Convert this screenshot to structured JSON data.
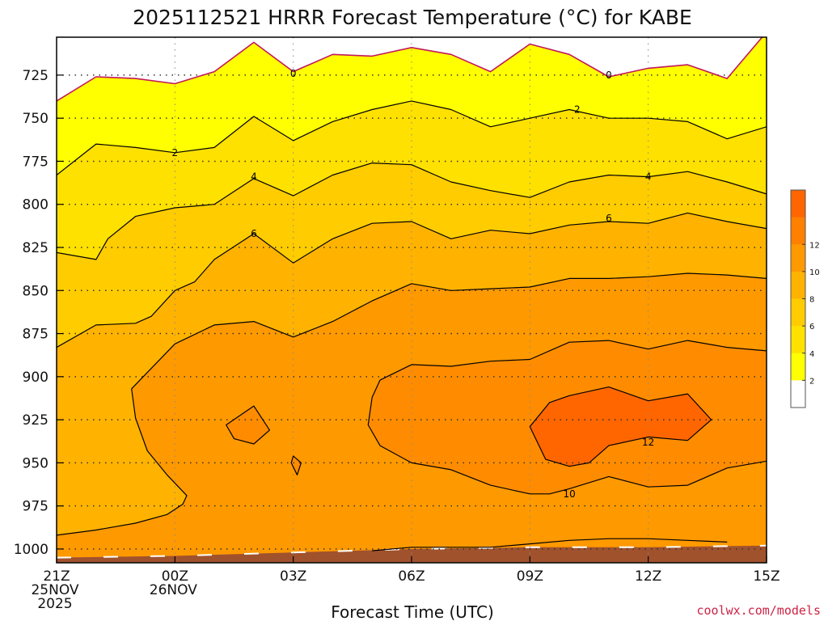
{
  "chart_data": {
    "type": "contour",
    "title": "2025112521 HRRR Forecast Temperature (°C) for KABE",
    "xlabel": "Forecast Time (UTC)",
    "ylabel": "",
    "x_ticks": [
      {
        "hour": 0,
        "lines": [
          "21Z",
          "25NOV",
          "2025"
        ]
      },
      {
        "hour": 3,
        "lines": [
          "00Z",
          "26NOV"
        ]
      },
      {
        "hour": 6,
        "lines": [
          "03Z"
        ]
      },
      {
        "hour": 9,
        "lines": [
          "06Z"
        ]
      },
      {
        "hour": 12,
        "lines": [
          "09Z"
        ]
      },
      {
        "hour": 15,
        "lines": [
          "12Z"
        ]
      },
      {
        "hour": 18,
        "lines": [
          "15Z"
        ]
      }
    ],
    "y_ticks": [
      725,
      750,
      775,
      800,
      825,
      850,
      875,
      900,
      925,
      950,
      975,
      1000
    ],
    "xlim": [
      0,
      18
    ],
    "ylim": [
      1008,
      703
    ],
    "credit": "coolwx.com/models",
    "colorbar": {
      "ticks": [
        "2",
        "4",
        "6",
        "8",
        "10",
        "12"
      ],
      "colors": [
        "#ffffff",
        "#ffff00",
        "#ffe100",
        "#ffcc00",
        "#ffb300",
        "#ff9900",
        "#ff8000",
        "#ff6600"
      ]
    },
    "fill_colors": {
      "0": "#ffffff",
      "2": "#ffff00",
      "4": "#ffe100",
      "6": "#ffcc00",
      "8": "#ffb300",
      "10": "#ff9900",
      "12": "#ff6600",
      "ground": "#a0522d"
    },
    "isotherms": [
      {
        "level": "0",
        "color": "#c2185b",
        "closed": false,
        "points": [
          [
            0,
            740
          ],
          [
            1,
            726
          ],
          [
            2,
            727
          ],
          [
            3,
            730
          ],
          [
            4,
            723
          ],
          [
            5,
            706
          ],
          [
            6,
            723
          ],
          [
            7,
            713
          ],
          [
            8,
            714
          ],
          [
            9,
            709
          ],
          [
            10,
            713
          ],
          [
            11,
            723
          ],
          [
            12,
            707
          ],
          [
            13,
            713
          ],
          [
            14,
            726
          ],
          [
            15,
            721
          ],
          [
            16,
            719
          ],
          [
            17,
            727
          ],
          [
            18,
            700
          ]
        ],
        "labels": [
          [
            6,
            724
          ],
          [
            14,
            725
          ]
        ]
      },
      {
        "level": "2",
        "color": "#000000",
        "closed": false,
        "points": [
          [
            0,
            783
          ],
          [
            1,
            765
          ],
          [
            2,
            767
          ],
          [
            3,
            770
          ],
          [
            4,
            767
          ],
          [
            5,
            749
          ],
          [
            6,
            763
          ],
          [
            7,
            752
          ],
          [
            8,
            745
          ],
          [
            9,
            740
          ],
          [
            10,
            745
          ],
          [
            11,
            755
          ],
          [
            12,
            750
          ],
          [
            13,
            745
          ],
          [
            14,
            750
          ],
          [
            15,
            750
          ],
          [
            16,
            752
          ],
          [
            17,
            762
          ],
          [
            18,
            755
          ]
        ],
        "labels": [
          [
            3,
            770
          ],
          [
            13.2,
            745
          ]
        ]
      },
      {
        "level": "4",
        "color": "#000000",
        "closed": false,
        "points": [
          [
            0,
            828
          ],
          [
            1,
            832
          ],
          [
            1.3,
            820
          ],
          [
            2,
            807
          ],
          [
            3,
            802
          ],
          [
            4,
            800
          ],
          [
            5,
            785
          ],
          [
            6,
            795
          ],
          [
            7,
            783
          ],
          [
            8,
            776
          ],
          [
            9,
            777
          ],
          [
            10,
            787
          ],
          [
            11,
            792
          ],
          [
            12,
            796
          ],
          [
            13,
            787
          ],
          [
            14,
            783
          ],
          [
            15,
            784
          ],
          [
            16,
            781
          ],
          [
            17,
            787
          ],
          [
            18,
            794
          ]
        ],
        "labels": [
          [
            5,
            784
          ],
          [
            15,
            784
          ]
        ]
      },
      {
        "level": "6",
        "color": "#000000",
        "closed": false,
        "points": [
          [
            0,
            883
          ],
          [
            1,
            870
          ],
          [
            2,
            869
          ],
          [
            2.4,
            865
          ],
          [
            3,
            850
          ],
          [
            3.5,
            845
          ],
          [
            4,
            832
          ],
          [
            5,
            817
          ],
          [
            6,
            834
          ],
          [
            7,
            820
          ],
          [
            8,
            811
          ],
          [
            9,
            810
          ],
          [
            10,
            820
          ],
          [
            11,
            815
          ],
          [
            12,
            817
          ],
          [
            13,
            812
          ],
          [
            14,
            810
          ],
          [
            15,
            811
          ],
          [
            16,
            805
          ],
          [
            17,
            810
          ],
          [
            18,
            814
          ]
        ],
        "labels": [
          [
            5,
            817
          ],
          [
            14,
            808
          ]
        ]
      },
      {
        "level": "8",
        "color": "#000000",
        "closed": false,
        "points": [
          [
            0,
            992
          ],
          [
            1,
            989
          ],
          [
            2,
            985
          ],
          [
            2.8,
            980
          ],
          [
            3.2,
            974
          ],
          [
            3.3,
            969
          ],
          [
            2.8,
            957
          ],
          [
            2.3,
            943
          ],
          [
            2.0,
            924
          ],
          [
            1.9,
            907
          ],
          [
            3,
            881
          ],
          [
            4,
            870
          ],
          [
            5,
            868
          ],
          [
            6,
            877
          ],
          [
            7,
            868
          ],
          [
            8,
            856
          ],
          [
            9,
            846
          ],
          [
            10,
            850
          ],
          [
            11,
            849
          ],
          [
            12,
            848
          ],
          [
            13,
            843
          ],
          [
            14,
            843
          ],
          [
            15,
            842
          ],
          [
            16,
            840
          ],
          [
            17,
            841
          ],
          [
            18,
            843
          ]
        ],
        "labels": []
      },
      {
        "level": "10",
        "color": "#000000",
        "closed": false,
        "points": [
          [
            18,
            885
          ],
          [
            17,
            883
          ],
          [
            16,
            879
          ],
          [
            15,
            884
          ],
          [
            14,
            879
          ],
          [
            13,
            880
          ],
          [
            12,
            890
          ],
          [
            11,
            891
          ],
          [
            10,
            894
          ],
          [
            9,
            893
          ],
          [
            8.2,
            902
          ],
          [
            8,
            912
          ],
          [
            7.9,
            928
          ],
          [
            8.2,
            940
          ],
          [
            9,
            950
          ],
          [
            10,
            954
          ],
          [
            11,
            963
          ],
          [
            12,
            968
          ],
          [
            12.5,
            968
          ],
          [
            13,
            965
          ],
          [
            14,
            958
          ],
          [
            15,
            964
          ],
          [
            16,
            963
          ],
          [
            17,
            953
          ],
          [
            18,
            949
          ]
        ],
        "labels": [
          [
            13,
            968
          ]
        ]
      },
      {
        "level": "12",
        "color": "#000000",
        "closed": true,
        "points": [
          [
            12,
            929
          ],
          [
            12.5,
            915
          ],
          [
            13,
            911
          ],
          [
            14,
            906
          ],
          [
            15,
            914
          ],
          [
            16,
            910
          ],
          [
            16.6,
            925
          ],
          [
            16,
            937
          ],
          [
            15,
            935
          ],
          [
            14,
            940
          ],
          [
            13.5,
            950
          ],
          [
            13,
            952
          ],
          [
            12.4,
            948
          ]
        ],
        "labels": [
          [
            15,
            938
          ]
        ]
      },
      {
        "level": "10",
        "color": "#000000",
        "closed": true,
        "points": [
          [
            4.3,
            928
          ],
          [
            5,
            917
          ],
          [
            5.4,
            931
          ],
          [
            5,
            939
          ],
          [
            4.5,
            936
          ]
        ],
        "labels": []
      },
      {
        "level": "10",
        "color": "#000000",
        "closed": true,
        "points": [
          [
            6.0,
            946
          ],
          [
            6.2,
            950
          ],
          [
            6.1,
            957
          ],
          [
            5.95,
            950
          ]
        ],
        "labels": []
      },
      {
        "level": "10",
        "color": "#000000",
        "closed": false,
        "points": [
          [
            8,
            1001
          ],
          [
            9,
            999
          ],
          [
            11,
            999
          ],
          [
            12,
            997
          ],
          [
            13,
            995
          ],
          [
            14,
            994
          ],
          [
            15,
            994
          ],
          [
            16,
            995
          ],
          [
            17,
            996
          ]
        ],
        "labels": []
      }
    ],
    "ground": {
      "points": [
        [
          0,
          1005
        ],
        [
          3,
          1004
        ],
        [
          6,
          1002
        ],
        [
          9,
          1000
        ],
        [
          12,
          999
        ],
        [
          15,
          999
        ],
        [
          18,
          998
        ]
      ]
    }
  }
}
